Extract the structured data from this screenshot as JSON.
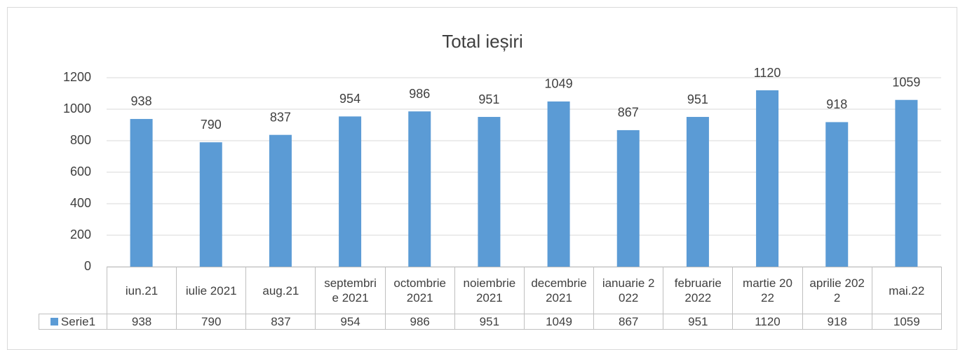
{
  "chart_data": {
    "type": "bar",
    "title": "Total ieșiri",
    "categories": [
      "iun.21",
      "iulie 2021",
      "aug.21",
      "septembrie 2021",
      "octombrie 2021",
      "noiembrie 2021",
      "decembrie 2021",
      "ianuarie 2022",
      "februarie 2022",
      "martie 2022",
      "aprilie 2022",
      "mai.22"
    ],
    "series": [
      {
        "name": "Serie1",
        "color": "#5b9bd5",
        "values": [
          938,
          790,
          837,
          954,
          986,
          951,
          1049,
          867,
          951,
          1120,
          918,
          1059
        ]
      }
    ],
    "ylim": [
      0,
      1200
    ],
    "yticks": [
      0,
      200,
      400,
      600,
      800,
      1000,
      1200
    ],
    "grid": true,
    "data_table": true
  }
}
